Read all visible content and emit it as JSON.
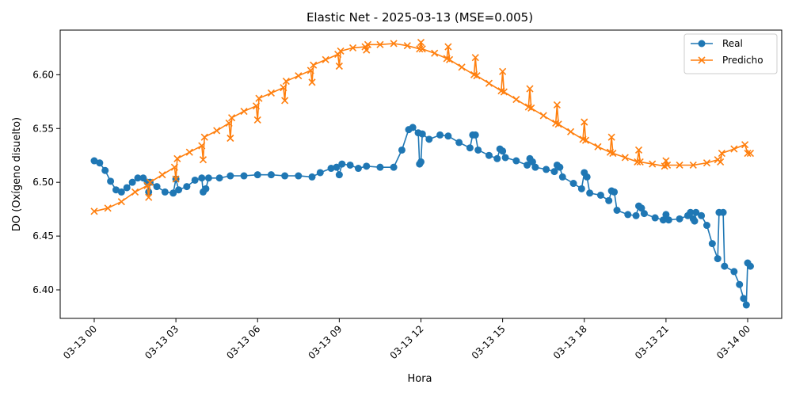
{
  "chart_data": {
    "type": "line",
    "title": "Elastic Net - 2025-03-13 (MSE=0.005)",
    "xlabel": "Hora",
    "ylabel": "DO (Oxígeno disuelto)",
    "xlim_hours": [
      -1.25,
      25.25
    ],
    "ylim": [
      6.3735,
      6.6415
    ],
    "xticks": [
      {
        "h": 0,
        "label": "03-13 00"
      },
      {
        "h": 3,
        "label": "03-13 03"
      },
      {
        "h": 6,
        "label": "03-13 06"
      },
      {
        "h": 9,
        "label": "03-13 09"
      },
      {
        "h": 12,
        "label": "03-13 12"
      },
      {
        "h": 15,
        "label": "03-13 15"
      },
      {
        "h": 18,
        "label": "03-13 18"
      },
      {
        "h": 21,
        "label": "03-13 21"
      },
      {
        "h": 24,
        "label": "03-14 00"
      }
    ],
    "yticks": [
      {
        "v": 6.4,
        "label": "6.40"
      },
      {
        "v": 6.45,
        "label": "6.45"
      },
      {
        "v": 6.5,
        "label": "6.50"
      },
      {
        "v": 6.55,
        "label": "6.55"
      },
      {
        "v": 6.6,
        "label": "6.60"
      }
    ],
    "grid": false,
    "legend_position": "top-right",
    "series": [
      {
        "name": "Real",
        "color": "#1f77b4",
        "marker": "circle",
        "points": [
          [
            0.0,
            6.52
          ],
          [
            0.2,
            6.518
          ],
          [
            0.4,
            6.511
          ],
          [
            0.6,
            6.501
          ],
          [
            0.8,
            6.493
          ],
          [
            1.0,
            6.491
          ],
          [
            1.2,
            6.495
          ],
          [
            1.4,
            6.5
          ],
          [
            1.6,
            6.504
          ],
          [
            1.8,
            6.504
          ],
          [
            1.95,
            6.5
          ],
          [
            2.0,
            6.491
          ],
          [
            2.05,
            6.5
          ],
          [
            2.3,
            6.496
          ],
          [
            2.6,
            6.491
          ],
          [
            2.9,
            6.49
          ],
          [
            3.0,
            6.503
          ],
          [
            3.1,
            6.493
          ],
          [
            3.4,
            6.496
          ],
          [
            3.7,
            6.502
          ],
          [
            3.95,
            6.504
          ],
          [
            4.0,
            6.491
          ],
          [
            4.1,
            6.494
          ],
          [
            4.2,
            6.504
          ],
          [
            4.6,
            6.504
          ],
          [
            5.0,
            6.506
          ],
          [
            5.5,
            6.506
          ],
          [
            6.0,
            6.507
          ],
          [
            6.5,
            6.507
          ],
          [
            7.0,
            6.506
          ],
          [
            7.5,
            6.506
          ],
          [
            8.0,
            6.505
          ],
          [
            8.3,
            6.509
          ],
          [
            8.7,
            6.513
          ],
          [
            8.9,
            6.514
          ],
          [
            9.0,
            6.507
          ],
          [
            9.1,
            6.517
          ],
          [
            9.4,
            6.516
          ],
          [
            9.7,
            6.513
          ],
          [
            10.0,
            6.515
          ],
          [
            10.5,
            6.514
          ],
          [
            11.0,
            6.514
          ],
          [
            11.3,
            6.53
          ],
          [
            11.55,
            6.549
          ],
          [
            11.7,
            6.551
          ],
          [
            11.9,
            6.546
          ],
          [
            11.95,
            6.517
          ],
          [
            12.0,
            6.519
          ],
          [
            12.05,
            6.545
          ],
          [
            12.3,
            6.54
          ],
          [
            12.7,
            6.544
          ],
          [
            13.0,
            6.543
          ],
          [
            13.4,
            6.537
          ],
          [
            13.8,
            6.532
          ],
          [
            13.9,
            6.544
          ],
          [
            14.0,
            6.544
          ],
          [
            14.1,
            6.53
          ],
          [
            14.5,
            6.525
          ],
          [
            14.8,
            6.522
          ],
          [
            14.9,
            6.531
          ],
          [
            15.0,
            6.529
          ],
          [
            15.1,
            6.523
          ],
          [
            15.5,
            6.52
          ],
          [
            15.9,
            6.516
          ],
          [
            16.0,
            6.522
          ],
          [
            16.1,
            6.519
          ],
          [
            16.2,
            6.514
          ],
          [
            16.6,
            6.512
          ],
          [
            16.9,
            6.51
          ],
          [
            17.0,
            6.516
          ],
          [
            17.1,
            6.514
          ],
          [
            17.2,
            6.505
          ],
          [
            17.6,
            6.499
          ],
          [
            17.9,
            6.494
          ],
          [
            18.0,
            6.509
          ],
          [
            18.1,
            6.505
          ],
          [
            18.2,
            6.49
          ],
          [
            18.6,
            6.488
          ],
          [
            18.9,
            6.483
          ],
          [
            19.0,
            6.492
          ],
          [
            19.1,
            6.491
          ],
          [
            19.2,
            6.474
          ],
          [
            19.6,
            6.47
          ],
          [
            19.9,
            6.469
          ],
          [
            20.0,
            6.478
          ],
          [
            20.1,
            6.476
          ],
          [
            20.2,
            6.471
          ],
          [
            20.6,
            6.467
          ],
          [
            20.9,
            6.465
          ],
          [
            21.0,
            6.47
          ],
          [
            21.1,
            6.465
          ],
          [
            21.5,
            6.466
          ],
          [
            21.8,
            6.469
          ],
          [
            21.9,
            6.472
          ],
          [
            22.0,
            6.466
          ],
          [
            22.05,
            6.464
          ],
          [
            22.1,
            6.472
          ],
          [
            22.3,
            6.469
          ],
          [
            22.5,
            6.46
          ],
          [
            22.7,
            6.443
          ],
          [
            22.9,
            6.429
          ],
          [
            22.95,
            6.472
          ],
          [
            23.1,
            6.472
          ],
          [
            23.15,
            6.422
          ],
          [
            23.5,
            6.417
          ],
          [
            23.7,
            6.405
          ],
          [
            23.85,
            6.392
          ],
          [
            23.95,
            6.386
          ],
          [
            24.0,
            6.425
          ],
          [
            24.1,
            6.422
          ]
        ]
      },
      {
        "name": "Predicho",
        "color": "#ff7f0e",
        "marker": "x",
        "points": [
          [
            0.0,
            6.473
          ],
          [
            0.5,
            6.476
          ],
          [
            1.0,
            6.482
          ],
          [
            1.5,
            6.491
          ],
          [
            1.95,
            6.497
          ],
          [
            2.0,
            6.486
          ],
          [
            2.05,
            6.5
          ],
          [
            2.5,
            6.507
          ],
          [
            2.95,
            6.514
          ],
          [
            3.0,
            6.503
          ],
          [
            3.05,
            6.522
          ],
          [
            3.5,
            6.528
          ],
          [
            3.95,
            6.534
          ],
          [
            4.0,
            6.521
          ],
          [
            4.05,
            6.542
          ],
          [
            4.5,
            6.548
          ],
          [
            4.95,
            6.555
          ],
          [
            5.0,
            6.541
          ],
          [
            5.05,
            6.56
          ],
          [
            5.5,
            6.566
          ],
          [
            5.95,
            6.571
          ],
          [
            6.0,
            6.558
          ],
          [
            6.05,
            6.578
          ],
          [
            6.5,
            6.583
          ],
          [
            6.95,
            6.588
          ],
          [
            7.0,
            6.576
          ],
          [
            7.05,
            6.594
          ],
          [
            7.5,
            6.599
          ],
          [
            7.95,
            6.604
          ],
          [
            8.0,
            6.593
          ],
          [
            8.05,
            6.609
          ],
          [
            8.5,
            6.614
          ],
          [
            8.95,
            6.619
          ],
          [
            9.0,
            6.608
          ],
          [
            9.05,
            6.622
          ],
          [
            9.5,
            6.625
          ],
          [
            9.95,
            6.626
          ],
          [
            10.0,
            6.623
          ],
          [
            10.05,
            6.628
          ],
          [
            10.5,
            6.628
          ],
          [
            11.0,
            6.629
          ],
          [
            11.5,
            6.627
          ],
          [
            11.95,
            6.624
          ],
          [
            12.0,
            6.63
          ],
          [
            12.05,
            6.624
          ],
          [
            12.5,
            6.62
          ],
          [
            12.95,
            6.615
          ],
          [
            13.0,
            6.626
          ],
          [
            13.05,
            6.614
          ],
          [
            13.5,
            6.607
          ],
          [
            13.95,
            6.6
          ],
          [
            14.0,
            6.616
          ],
          [
            14.05,
            6.599
          ],
          [
            14.5,
            6.592
          ],
          [
            14.95,
            6.585
          ],
          [
            15.0,
            6.603
          ],
          [
            15.05,
            6.584
          ],
          [
            15.5,
            6.577
          ],
          [
            15.95,
            6.57
          ],
          [
            16.0,
            6.587
          ],
          [
            16.05,
            6.569
          ],
          [
            16.5,
            6.562
          ],
          [
            16.95,
            6.555
          ],
          [
            17.0,
            6.572
          ],
          [
            17.05,
            6.554
          ],
          [
            17.5,
            6.547
          ],
          [
            17.95,
            6.54
          ],
          [
            18.0,
            6.556
          ],
          [
            18.05,
            6.539
          ],
          [
            18.5,
            6.533
          ],
          [
            18.95,
            6.528
          ],
          [
            19.0,
            6.542
          ],
          [
            19.05,
            6.527
          ],
          [
            19.5,
            6.523
          ],
          [
            19.95,
            6.519
          ],
          [
            20.0,
            6.53
          ],
          [
            20.05,
            6.519
          ],
          [
            20.5,
            6.517
          ],
          [
            20.95,
            6.515
          ],
          [
            21.0,
            6.52
          ],
          [
            21.05,
            6.516
          ],
          [
            21.5,
            6.516
          ],
          [
            22.0,
            6.516
          ],
          [
            22.5,
            6.518
          ],
          [
            22.9,
            6.521
          ],
          [
            23.0,
            6.519
          ],
          [
            23.05,
            6.527
          ],
          [
            23.5,
            6.531
          ],
          [
            23.9,
            6.535
          ],
          [
            24.0,
            6.527
          ],
          [
            24.1,
            6.527
          ]
        ]
      }
    ]
  }
}
